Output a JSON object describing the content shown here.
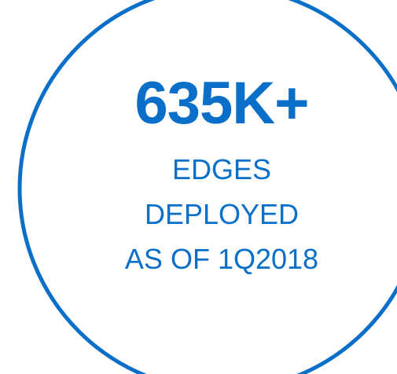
{
  "stat": {
    "value": "635K+",
    "label_lines": [
      "EDGES",
      "DEPLOYED",
      "AS OF 1Q2018"
    ]
  },
  "colors": {
    "accent": "#0a6fc8",
    "background": "#ffffff"
  }
}
